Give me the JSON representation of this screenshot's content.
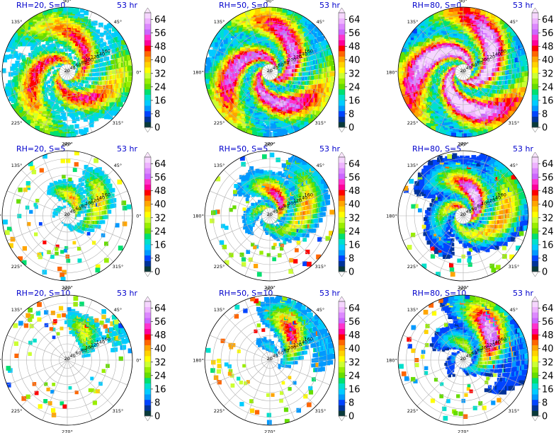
{
  "chart_data": {
    "type": "heatmap",
    "panels": [
      {
        "title_left": "RH=20, S=0",
        "title_right": "53 hr",
        "rh": 20,
        "shear": 0
      },
      {
        "title_left": "RH=50, S=0",
        "title_right": "53 hr",
        "rh": 50,
        "shear": 0
      },
      {
        "title_left": "RH=80, S=0",
        "title_right": "53 hr",
        "rh": 80,
        "shear": 0
      },
      {
        "title_left": "RH=20, S=5",
        "title_right": "53 hr",
        "rh": 20,
        "shear": 5
      },
      {
        "title_left": "RH=50, S=5",
        "title_right": "53 hr",
        "rh": 50,
        "shear": 5
      },
      {
        "title_left": "RH=80, S=5",
        "title_right": "53 hr",
        "rh": 80,
        "shear": 5
      },
      {
        "title_left": "RH=20, S=10",
        "title_right": "53 hr",
        "rh": 20,
        "shear": 10
      },
      {
        "title_left": "RH=50, S=10",
        "title_right": "53 hr",
        "rh": 50,
        "shear": 10
      },
      {
        "title_left": "RH=80, S=10",
        "title_right": "53 hr",
        "rh": 80,
        "shear": 10
      }
    ],
    "angular_ticks": [
      "0°",
      "45°",
      "90°",
      "135°",
      "180°",
      "225°",
      "270°",
      "315°"
    ],
    "radial_ticks": [
      "20",
      "40",
      "60",
      "80",
      "100",
      "120",
      "140",
      "160"
    ],
    "colorbar": {
      "ticks": [
        "0",
        "8",
        "16",
        "24",
        "32",
        "40",
        "48",
        "56",
        "64"
      ],
      "range": [
        0,
        68
      ],
      "extend": "both",
      "colors": [
        "#0a3a3a",
        "#003399",
        "#0044ff",
        "#0099ff",
        "#00ccff",
        "#00e0cc",
        "#00e070",
        "#66dd00",
        "#99ee00",
        "#ccff33",
        "#ffff00",
        "#ffd200",
        "#ffa500",
        "#ff6600",
        "#ff0000",
        "#ff0099",
        "#ff33cc",
        "#cc66ff",
        "#dd88ff",
        "#eeb3ff",
        "#f6d6ff"
      ]
    }
  }
}
